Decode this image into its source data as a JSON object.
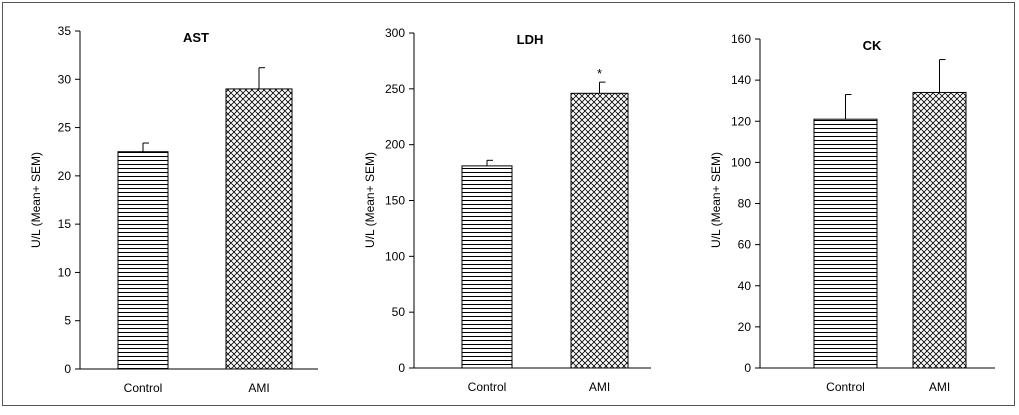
{
  "chart_data": [
    {
      "type": "bar",
      "title": "AST",
      "ylabel": "U/L (Mean+ SEM)",
      "xlabel": "",
      "categories": [
        "Control",
        "AMI"
      ],
      "values": [
        22.5,
        29.0
      ],
      "errors": [
        0.9,
        2.2
      ],
      "annotations": [
        "",
        ""
      ],
      "ylim": [
        0,
        35
      ],
      "yticks": [
        0,
        5,
        10,
        15,
        20,
        25,
        30,
        35
      ],
      "patterns": [
        "horizontal-lines",
        "crosshatch"
      ],
      "grid": false
    },
    {
      "type": "bar",
      "title": "LDH",
      "ylabel": "U/L (Mean+ SEM)",
      "xlabel": "",
      "categories": [
        "Control",
        "AMI"
      ],
      "values": [
        181,
        246
      ],
      "errors": [
        5,
        10
      ],
      "annotations": [
        "",
        "*"
      ],
      "ylim": [
        0,
        300
      ],
      "yticks": [
        0,
        50,
        100,
        150,
        200,
        250,
        300
      ],
      "patterns": [
        "horizontal-lines",
        "crosshatch"
      ],
      "grid": false
    },
    {
      "type": "bar",
      "title": "CK",
      "ylabel": "U/L (Mean+ SEM)",
      "xlabel": "",
      "categories": [
        "Control",
        "AMI"
      ],
      "values": [
        121,
        134
      ],
      "errors": [
        12,
        16
      ],
      "annotations": [
        "",
        ""
      ],
      "ylim": [
        0,
        160
      ],
      "yticks": [
        0,
        20,
        40,
        60,
        80,
        100,
        120,
        140,
        160
      ],
      "patterns": [
        "horizontal-lines",
        "crosshatch"
      ],
      "grid": false
    }
  ],
  "colors": {
    "bar_stroke": "#000000",
    "background": "#ffffff",
    "frame": "#555555"
  }
}
